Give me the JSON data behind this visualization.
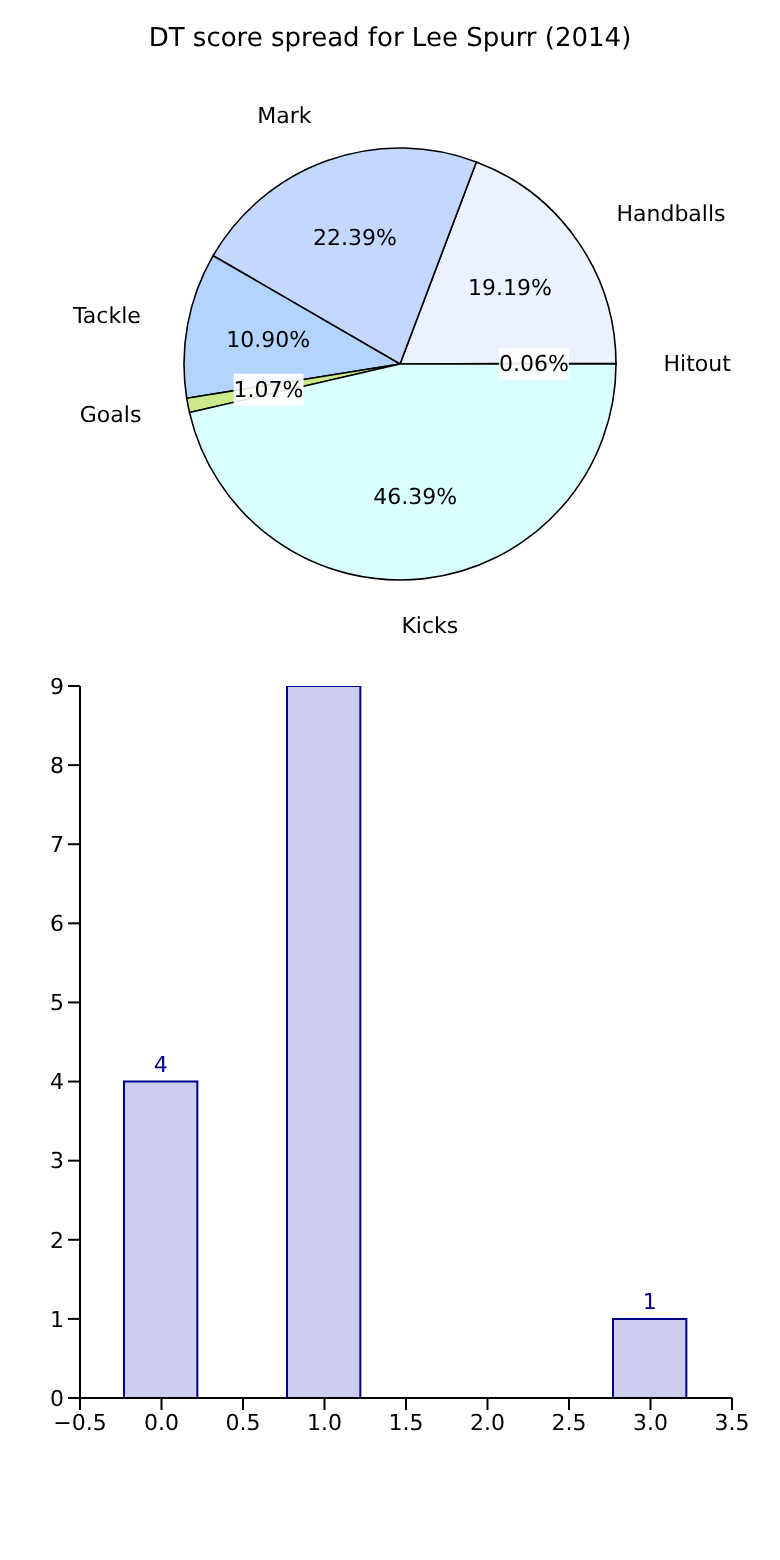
{
  "chart_data": [
    {
      "type": "pie",
      "title": "DT score spread for Lee Spurr (2014)",
      "categories": [
        "Hitout",
        "Handballs",
        "Mark",
        "Tackle",
        "Goals",
        "Kicks"
      ],
      "values": [
        0.06,
        19.19,
        22.39,
        10.9,
        1.07,
        46.39
      ],
      "value_labels": [
        "0.06%",
        "19.19%",
        "22.39%",
        "10.90%",
        "1.07%",
        "46.39%"
      ],
      "colors": [
        "#9aa7b8",
        "#eaf2ff",
        "#c4d8ff",
        "#b3d4ff",
        "#cdea8a",
        "#d9ffff"
      ]
    },
    {
      "type": "bar",
      "x": [
        0,
        1,
        2,
        3
      ],
      "values": [
        4,
        9,
        null,
        1
      ],
      "value_labels": [
        "4",
        null,
        null,
        "1"
      ],
      "color": "#ccccee",
      "xlim": [
        -0.5,
        3.5
      ],
      "xticks": [
        {
          "value": -0.5,
          "label": "−0.5"
        },
        {
          "value": 0,
          "label": "0.0"
        },
        {
          "value": 0.5,
          "label": "0.5"
        },
        {
          "value": 1,
          "label": "1.0"
        },
        {
          "value": 1.5,
          "label": "1.5"
        },
        {
          "value": 2,
          "label": "2.0"
        },
        {
          "value": 2.5,
          "label": "2.5"
        },
        {
          "value": 3,
          "label": "3.0"
        },
        {
          "value": 3.5,
          "label": "3.5"
        }
      ],
      "ylim": [
        0,
        9
      ],
      "yticks": [
        0,
        1,
        2,
        3,
        4,
        5,
        6,
        7,
        8,
        9
      ]
    }
  ]
}
